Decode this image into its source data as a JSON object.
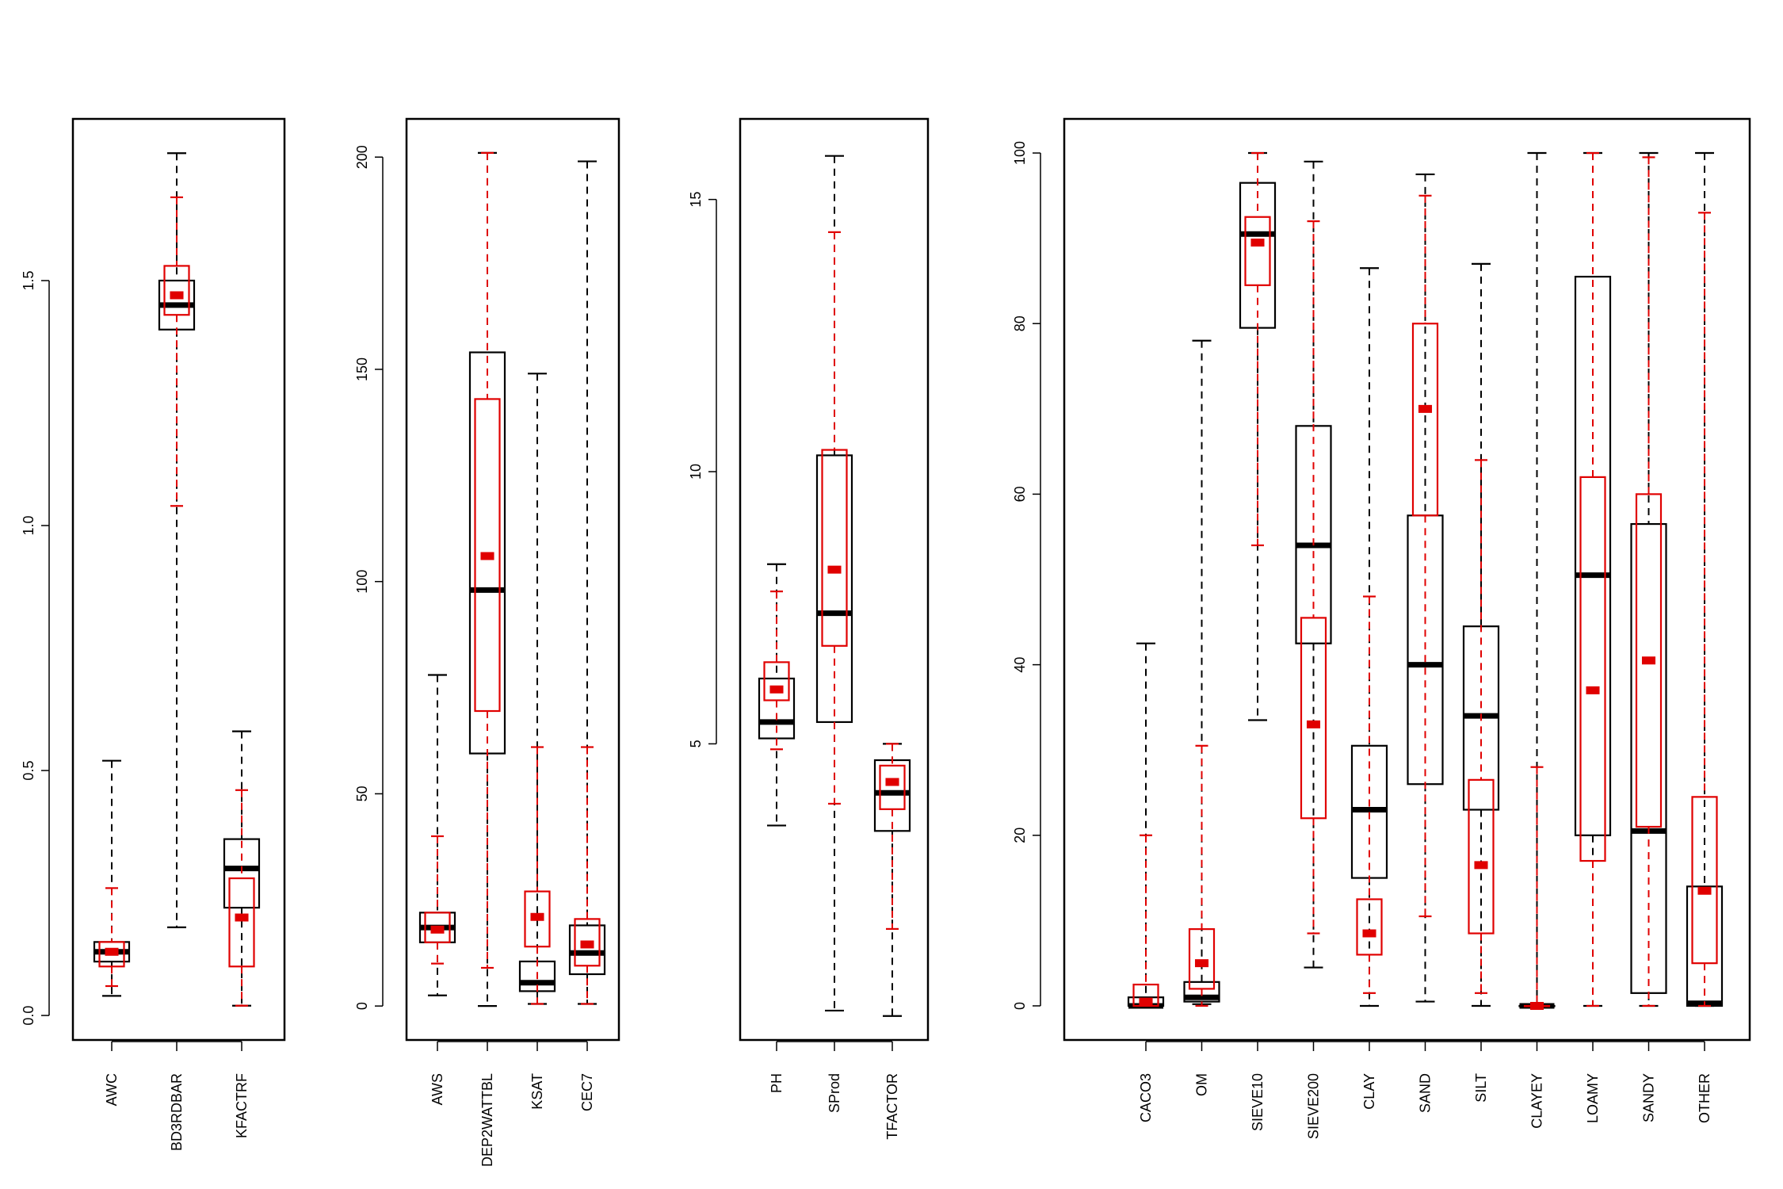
{
  "colors": {
    "series_a": "#000000",
    "series_b": "#e00000"
  },
  "chart_data": [
    {
      "type": "boxplot",
      "title": "",
      "xlabel": "",
      "ylabel": "",
      "ylim": [
        -0.05,
        1.83
      ],
      "y_ticks": [
        0.0,
        0.5,
        1.0,
        1.5
      ],
      "y_tick_labels": [
        "0.0",
        "0.5",
        "1.0",
        "1.5"
      ],
      "categories": [
        "AWC",
        "BD3RDBAR",
        "KFACTRF"
      ],
      "series": [
        {
          "color": "black",
          "boxes": [
            {
              "min": 0.04,
              "q1": 0.11,
              "median": 0.13,
              "q3": 0.15,
              "max": 0.52
            },
            {
              "min": 0.18,
              "q1": 1.4,
              "median": 1.45,
              "q3": 1.5,
              "max": 1.76
            },
            {
              "min": 0.02,
              "q1": 0.22,
              "median": 0.3,
              "q3": 0.36,
              "max": 0.58
            }
          ]
        },
        {
          "color": "red",
          "boxes": [
            {
              "min": 0.06,
              "q1": 0.1,
              "median": 0.13,
              "q3": 0.15,
              "max": 0.26
            },
            {
              "min": 1.04,
              "q1": 1.43,
              "median": 1.47,
              "q3": 1.53,
              "max": 1.67
            },
            {
              "min": 0.02,
              "q1": 0.1,
              "median": 0.2,
              "q3": 0.28,
              "max": 0.46
            }
          ]
        }
      ]
    },
    {
      "type": "boxplot",
      "title": "",
      "xlabel": "",
      "ylabel": "",
      "ylim": [
        -8,
        209
      ],
      "y_ticks": [
        0,
        50,
        100,
        150,
        200
      ],
      "y_tick_labels": [
        "0",
        "50",
        "100",
        "150",
        "200"
      ],
      "categories": [
        "AWS",
        "DEP2WATTBL",
        "KSAT",
        "CEC7"
      ],
      "series": [
        {
          "color": "black",
          "boxes": [
            {
              "min": 2.5,
              "q1": 15,
              "median": 18.5,
              "q3": 22,
              "max": 78
            },
            {
              "min": 0,
              "q1": 59.5,
              "median": 98,
              "q3": 154,
              "max": 201
            },
            {
              "min": 0.5,
              "q1": 3.5,
              "median": 5.5,
              "q3": 10.5,
              "max": 149
            },
            {
              "min": 0.5,
              "q1": 7.5,
              "median": 12.5,
              "q3": 19,
              "max": 199
            }
          ]
        },
        {
          "color": "red",
          "boxes": [
            {
              "min": 10,
              "q1": 15,
              "median": 18,
              "q3": 22,
              "max": 40
            },
            {
              "min": 9,
              "q1": 69.5,
              "median": 106,
              "q3": 143,
              "max": 201
            },
            {
              "min": 0.5,
              "q1": 14,
              "median": 21,
              "q3": 27,
              "max": 61
            },
            {
              "min": 0.5,
              "q1": 9.5,
              "median": 14.5,
              "q3": 20.5,
              "max": 61
            }
          ]
        }
      ]
    },
    {
      "type": "boxplot",
      "title": "",
      "xlabel": "",
      "ylabel": "",
      "ylim": [
        -0.44,
        16.48
      ],
      "y_ticks": [
        5,
        10,
        15
      ],
      "y_tick_labels": [
        "5",
        "10",
        "15"
      ],
      "categories": [
        "PH",
        "SProd",
        "TFACTOR"
      ],
      "series": [
        {
          "color": "black",
          "boxes": [
            {
              "min": 3.5,
              "q1": 5.1,
              "median": 5.4,
              "q3": 6.2,
              "max": 8.3
            },
            {
              "min": 0.1,
              "q1": 5.4,
              "median": 7.4,
              "q3": 10.3,
              "max": 15.8
            },
            {
              "min": 0,
              "q1": 3.4,
              "median": 4.1,
              "q3": 4.7,
              "max": 5
            }
          ]
        },
        {
          "color": "red",
          "boxes": [
            {
              "min": 4.9,
              "q1": 5.8,
              "median": 6.0,
              "q3": 6.5,
              "max": 7.8
            },
            {
              "min": 3.9,
              "q1": 6.8,
              "median": 8.2,
              "q3": 10.4,
              "max": 14.4
            },
            {
              "min": 1.6,
              "q1": 3.8,
              "median": 4.3,
              "q3": 4.6,
              "max": 5
            }
          ]
        }
      ]
    },
    {
      "type": "boxplot",
      "title": "",
      "xlabel": "",
      "ylabel": "",
      "ylim": [
        -4,
        104
      ],
      "y_ticks": [
        0,
        20,
        40,
        60,
        80,
        100
      ],
      "y_tick_labels": [
        "0",
        "20",
        "40",
        "60",
        "80",
        "100"
      ],
      "categories": [
        "CACO3",
        "OM",
        "SIEVE10",
        "SIEVE200",
        "CLAY",
        "SAND",
        "SILT",
        "CLAYEY",
        "LOAMY",
        "SANDY",
        "OTHER"
      ],
      "series": [
        {
          "color": "black",
          "boxes": [
            {
              "min": 0,
              "q1": 0,
              "median": 0,
              "q3": 1,
              "max": 42.5
            },
            {
              "min": 0.2,
              "q1": 0.5,
              "median": 1,
              "q3": 2.8,
              "max": 78
            },
            {
              "min": 33.5,
              "q1": 79.5,
              "median": 90.5,
              "q3": 96.5,
              "max": 100
            },
            {
              "min": 4.5,
              "q1": 42.5,
              "median": 54,
              "q3": 68,
              "max": 99
            },
            {
              "min": 0,
              "q1": 15,
              "median": 23,
              "q3": 30.5,
              "max": 86.5
            },
            {
              "min": 0.5,
              "q1": 26,
              "median": 40,
              "q3": 57.5,
              "max": 97.5
            },
            {
              "min": 0,
              "q1": 23,
              "median": 34,
              "q3": 44.5,
              "max": 87
            },
            {
              "min": 0,
              "q1": 0,
              "median": 0,
              "q3": 0,
              "max": 100
            },
            {
              "min": 0,
              "q1": 20,
              "median": 50.5,
              "q3": 85.5,
              "max": 100
            },
            {
              "min": 0,
              "q1": 1.5,
              "median": 20.5,
              "q3": 56.5,
              "max": 100
            },
            {
              "min": 0,
              "q1": 0,
              "median": 0.3,
              "q3": 14,
              "max": 100
            }
          ]
        },
        {
          "color": "red",
          "boxes": [
            {
              "min": 0,
              "q1": 0,
              "median": 0.5,
              "q3": 2.5,
              "max": 20
            },
            {
              "min": 0,
              "q1": 2,
              "median": 5,
              "q3": 9,
              "max": 30.5
            },
            {
              "min": 54,
              "q1": 84.5,
              "median": 89.5,
              "q3": 92.5,
              "max": 100
            },
            {
              "min": 8.5,
              "q1": 22,
              "median": 33,
              "q3": 45.5,
              "max": 92
            },
            {
              "min": 1.5,
              "q1": 6,
              "median": 8.5,
              "q3": 12.5,
              "max": 48
            },
            {
              "min": 10.5,
              "q1": 57.5,
              "median": 70,
              "q3": 80,
              "max": 95
            },
            {
              "min": 1.5,
              "q1": 8.5,
              "median": 16.5,
              "q3": 26.5,
              "max": 64
            },
            {
              "min": 0,
              "q1": 0,
              "median": 0,
              "q3": 0,
              "max": 28
            },
            {
              "min": 0,
              "q1": 17,
              "median": 37,
              "q3": 62,
              "max": 100
            },
            {
              "min": 0,
              "q1": 21,
              "median": 40.5,
              "q3": 60,
              "max": 99.5
            },
            {
              "min": 0,
              "q1": 5,
              "median": 13.5,
              "q3": 24.5,
              "max": 93
            }
          ]
        }
      ]
    }
  ]
}
